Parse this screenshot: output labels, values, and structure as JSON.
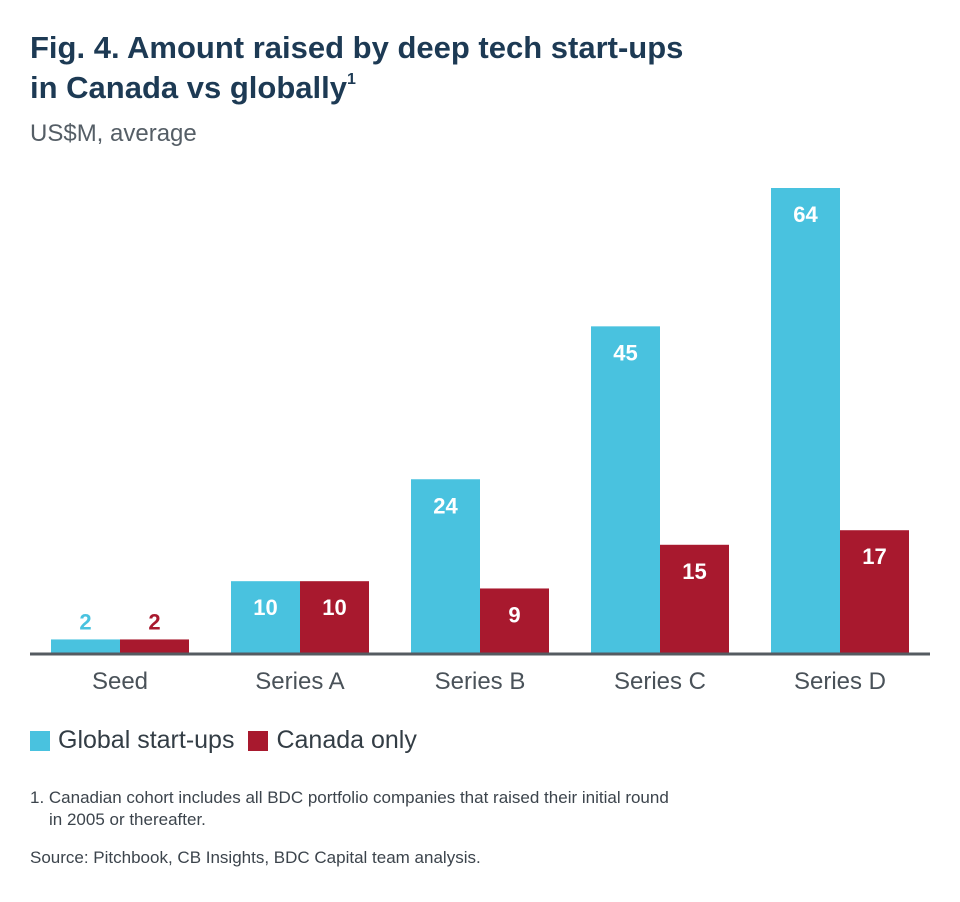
{
  "title": {
    "line1": "Fig. 4. Amount raised by deep tech start-ups",
    "line2": "in Canada vs globally",
    "footnote_ref": "1"
  },
  "subtitle": "US$M, average",
  "legend": {
    "global": "Global start-ups",
    "canada": "Canada only"
  },
  "footnote": {
    "line1": "1. Canadian cohort includes all BDC portfolio companies that raised their initial round",
    "line2": "in 2005 or thereafter."
  },
  "source": "Source: Pitchbook, CB Insights, BDC Capital team analysis.",
  "colors": {
    "global": "#49c2df",
    "canada": "#a8192e",
    "axis": "#555b61",
    "label_on_bar": "#ffffff",
    "tick_text": "#4a5259"
  },
  "chart_data": {
    "type": "bar",
    "title": "Fig. 4. Amount raised by deep tech start-ups in Canada vs globally",
    "xlabel": "",
    "ylabel": "US$M, average",
    "categories": [
      "Seed",
      "Series A",
      "Series B",
      "Series C",
      "Series D"
    ],
    "series": [
      {
        "name": "Global start-ups",
        "values": [
          2,
          10,
          24,
          45,
          64
        ]
      },
      {
        "name": "Canada only",
        "values": [
          2,
          10,
          9,
          15,
          17
        ]
      }
    ],
    "ylim": [
      0,
      64
    ],
    "grid": false,
    "legend_position": "bottom-left"
  }
}
